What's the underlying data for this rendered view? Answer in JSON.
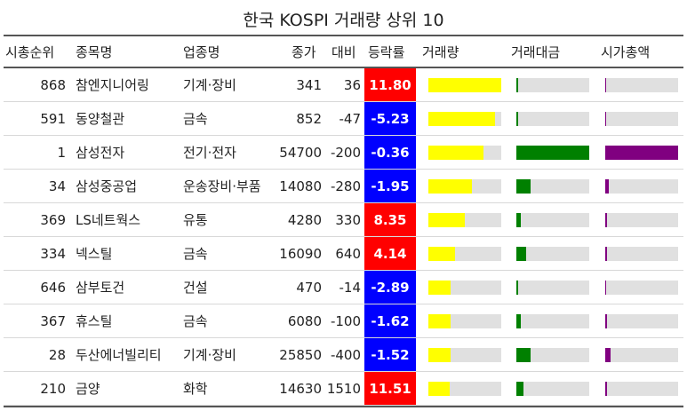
{
  "title": "한국 KOSPI 거래량 상위 10",
  "headers": {
    "rank": "시총순위",
    "name": "종목명",
    "sector": "업종명",
    "price": "종가",
    "diff": "대비",
    "rate": "등락률",
    "volume": "거래량",
    "amount": "거래대금",
    "mcap": "시가총액"
  },
  "colors": {
    "up": "#ff0000",
    "down": "#0000ff",
    "volume_bar": "#ffff00",
    "amount_bar": "#008000",
    "mcap_bar": "#800080",
    "track": "#e0e0e0"
  },
  "rows": [
    {
      "rank": "868",
      "name": "참엔지니어링",
      "sector": "기계·장비",
      "price": "341",
      "diff": "36",
      "rate": "11.80",
      "direction": "up",
      "volume_frac": 1.0,
      "amount_frac": 0.02,
      "mcap_frac": 0.0
    },
    {
      "rank": "591",
      "name": "동양철관",
      "sector": "금속",
      "price": "852",
      "diff": "-47",
      "rate": "-5.23",
      "direction": "down",
      "volume_frac": 0.92,
      "amount_frac": 0.03,
      "mcap_frac": 0.0
    },
    {
      "rank": "1",
      "name": "삼성전자",
      "sector": "전기·전자",
      "price": "54700",
      "diff": "-200",
      "rate": "-0.36",
      "direction": "down",
      "volume_frac": 0.76,
      "amount_frac": 1.0,
      "mcap_frac": 1.0
    },
    {
      "rank": "34",
      "name": "삼성중공업",
      "sector": "운송장비·부품",
      "price": "14080",
      "diff": "-280",
      "rate": "-1.95",
      "direction": "down",
      "volume_frac": 0.6,
      "amount_frac": 0.2,
      "mcap_frac": 0.05
    },
    {
      "rank": "369",
      "name": "LS네트웍스",
      "sector": "유통",
      "price": "4280",
      "diff": "330",
      "rate": "8.35",
      "direction": "up",
      "volume_frac": 0.5,
      "amount_frac": 0.06,
      "mcap_frac": 0.01
    },
    {
      "rank": "334",
      "name": "넥스틸",
      "sector": "금속",
      "price": "16090",
      "diff": "640",
      "rate": "4.14",
      "direction": "up",
      "volume_frac": 0.37,
      "amount_frac": 0.14,
      "mcap_frac": 0.01
    },
    {
      "rank": "646",
      "name": "삼부토건",
      "sector": "건설",
      "price": "470",
      "diff": "-14",
      "rate": "-2.89",
      "direction": "down",
      "volume_frac": 0.31,
      "amount_frac": 0.02,
      "mcap_frac": 0.0
    },
    {
      "rank": "367",
      "name": "휴스틸",
      "sector": "금속",
      "price": "6080",
      "diff": "-100",
      "rate": "-1.62",
      "direction": "down",
      "volume_frac": 0.3,
      "amount_frac": 0.06,
      "mcap_frac": 0.01
    },
    {
      "rank": "28",
      "name": "두산에너빌리티",
      "sector": "기계·장비",
      "price": "25850",
      "diff": "-400",
      "rate": "-1.52",
      "direction": "down",
      "volume_frac": 0.3,
      "amount_frac": 0.2,
      "mcap_frac": 0.07
    },
    {
      "rank": "210",
      "name": "금양",
      "sector": "화학",
      "price": "14630",
      "diff": "1510",
      "rate": "11.51",
      "direction": "up",
      "volume_frac": 0.29,
      "amount_frac": 0.1,
      "mcap_frac": 0.01
    }
  ]
}
